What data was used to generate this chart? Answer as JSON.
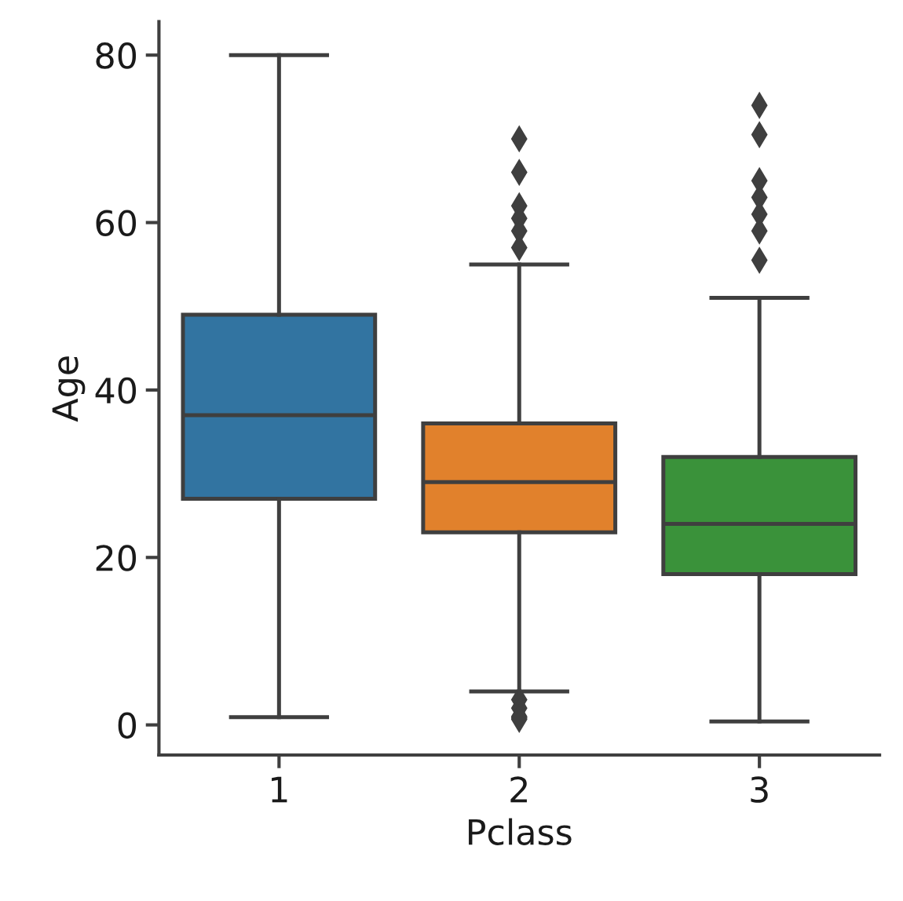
{
  "chart_data": {
    "type": "box",
    "xlabel": "Pclass",
    "ylabel": "Age",
    "categories": [
      "1",
      "2",
      "3"
    ],
    "colors": [
      "#3274a1",
      "#e1812c",
      "#3a923a"
    ],
    "boxes": [
      {
        "low": 0.92,
        "q1": 27,
        "median": 37,
        "q3": 49,
        "high": 80
      },
      {
        "low": 4,
        "q1": 23,
        "median": 29,
        "q3": 36,
        "high": 55,
        "outliers": [
          70,
          66,
          62,
          60.5,
          59,
          57,
          3,
          2,
          1,
          0.83,
          0.67
        ]
      },
      {
        "low": 0.42,
        "q1": 18,
        "median": 24,
        "q3": 32,
        "high": 51,
        "outliers": [
          74,
          70.5,
          65,
          63,
          61,
          59,
          55.5
        ]
      }
    ],
    "ylim": [
      -3.6,
      84
    ],
    "yticks": [
      0,
      20,
      40,
      60,
      80
    ],
    "marker": "diamond"
  }
}
